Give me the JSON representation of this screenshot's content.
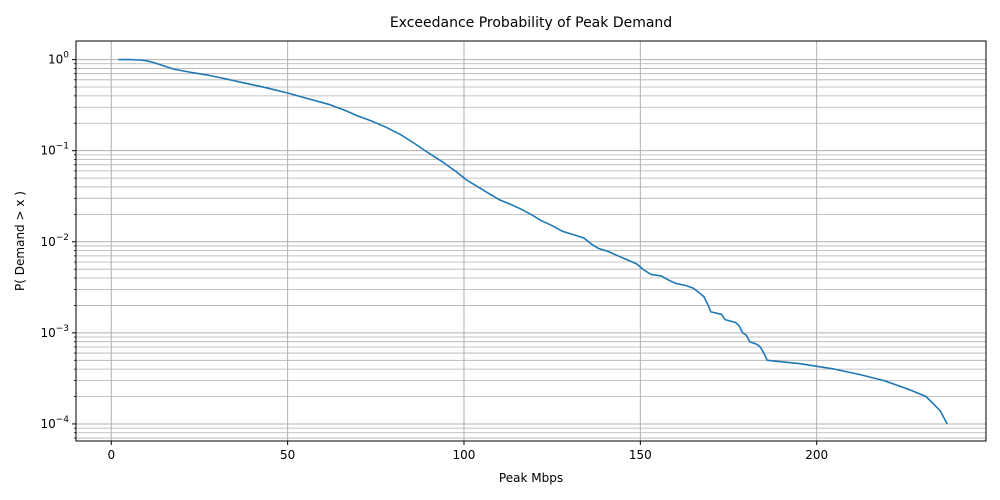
{
  "chart_data": {
    "type": "line",
    "title": "Exceedance Probability of Peak Demand",
    "xlabel": "Peak Mbps",
    "ylabel": "P( Demand > x )",
    "xlim": [
      -10,
      248
    ],
    "ylim": [
      6.5e-05,
      1.6
    ],
    "yscale": "log",
    "grid": true,
    "grid_minor_y": true,
    "x_ticks": [
      0,
      50,
      100,
      150,
      200
    ],
    "y_ticks": [
      {
        "value": 1,
        "base": "10",
        "exp": "0"
      },
      {
        "value": 0.1,
        "base": "10",
        "exp": "−1"
      },
      {
        "value": 0.01,
        "base": "10",
        "exp": "−2"
      },
      {
        "value": 0.001,
        "base": "10",
        "exp": "−3"
      },
      {
        "value": 0.0001,
        "base": "10",
        "exp": "−4"
      }
    ],
    "series": [
      {
        "color": "#1f77b4",
        "x": [
          2,
          5,
          8,
          10,
          12,
          15,
          18,
          22,
          27,
          32,
          38,
          44,
          50,
          56,
          62,
          66,
          70,
          74,
          78,
          82,
          86,
          90,
          94,
          98,
          101,
          104,
          107,
          110,
          113,
          116,
          119,
          122,
          125,
          128,
          131,
          134,
          136,
          138,
          141,
          143,
          146,
          149,
          151,
          153,
          156,
          158,
          160,
          163,
          165,
          167,
          168,
          169,
          170,
          173,
          174,
          177,
          178,
          179,
          180,
          181,
          183,
          184,
          185,
          186,
          195,
          205,
          212,
          219,
          226,
          231,
          235,
          237
        ],
        "y": [
          1.0,
          1.0,
          0.99,
          0.97,
          0.93,
          0.85,
          0.78,
          0.73,
          0.68,
          0.62,
          0.55,
          0.49,
          0.43,
          0.37,
          0.32,
          0.28,
          0.24,
          0.21,
          0.18,
          0.15,
          0.12,
          0.094,
          0.075,
          0.058,
          0.047,
          0.04,
          0.034,
          0.029,
          0.026,
          0.023,
          0.02,
          0.017,
          0.015,
          0.013,
          0.012,
          0.011,
          0.0095,
          0.0085,
          0.0078,
          0.0072,
          0.0064,
          0.0057,
          0.0049,
          0.0044,
          0.0042,
          0.0038,
          0.0035,
          0.0033,
          0.0031,
          0.0027,
          0.0025,
          0.0021,
          0.0017,
          0.0016,
          0.0014,
          0.0013,
          0.0012,
          0.001,
          0.00095,
          0.0008,
          0.00075,
          0.0007,
          0.0006,
          0.0005,
          0.00046,
          0.0004,
          0.00035,
          0.0003,
          0.00024,
          0.0002,
          0.00014,
          0.0001
        ]
      }
    ]
  }
}
